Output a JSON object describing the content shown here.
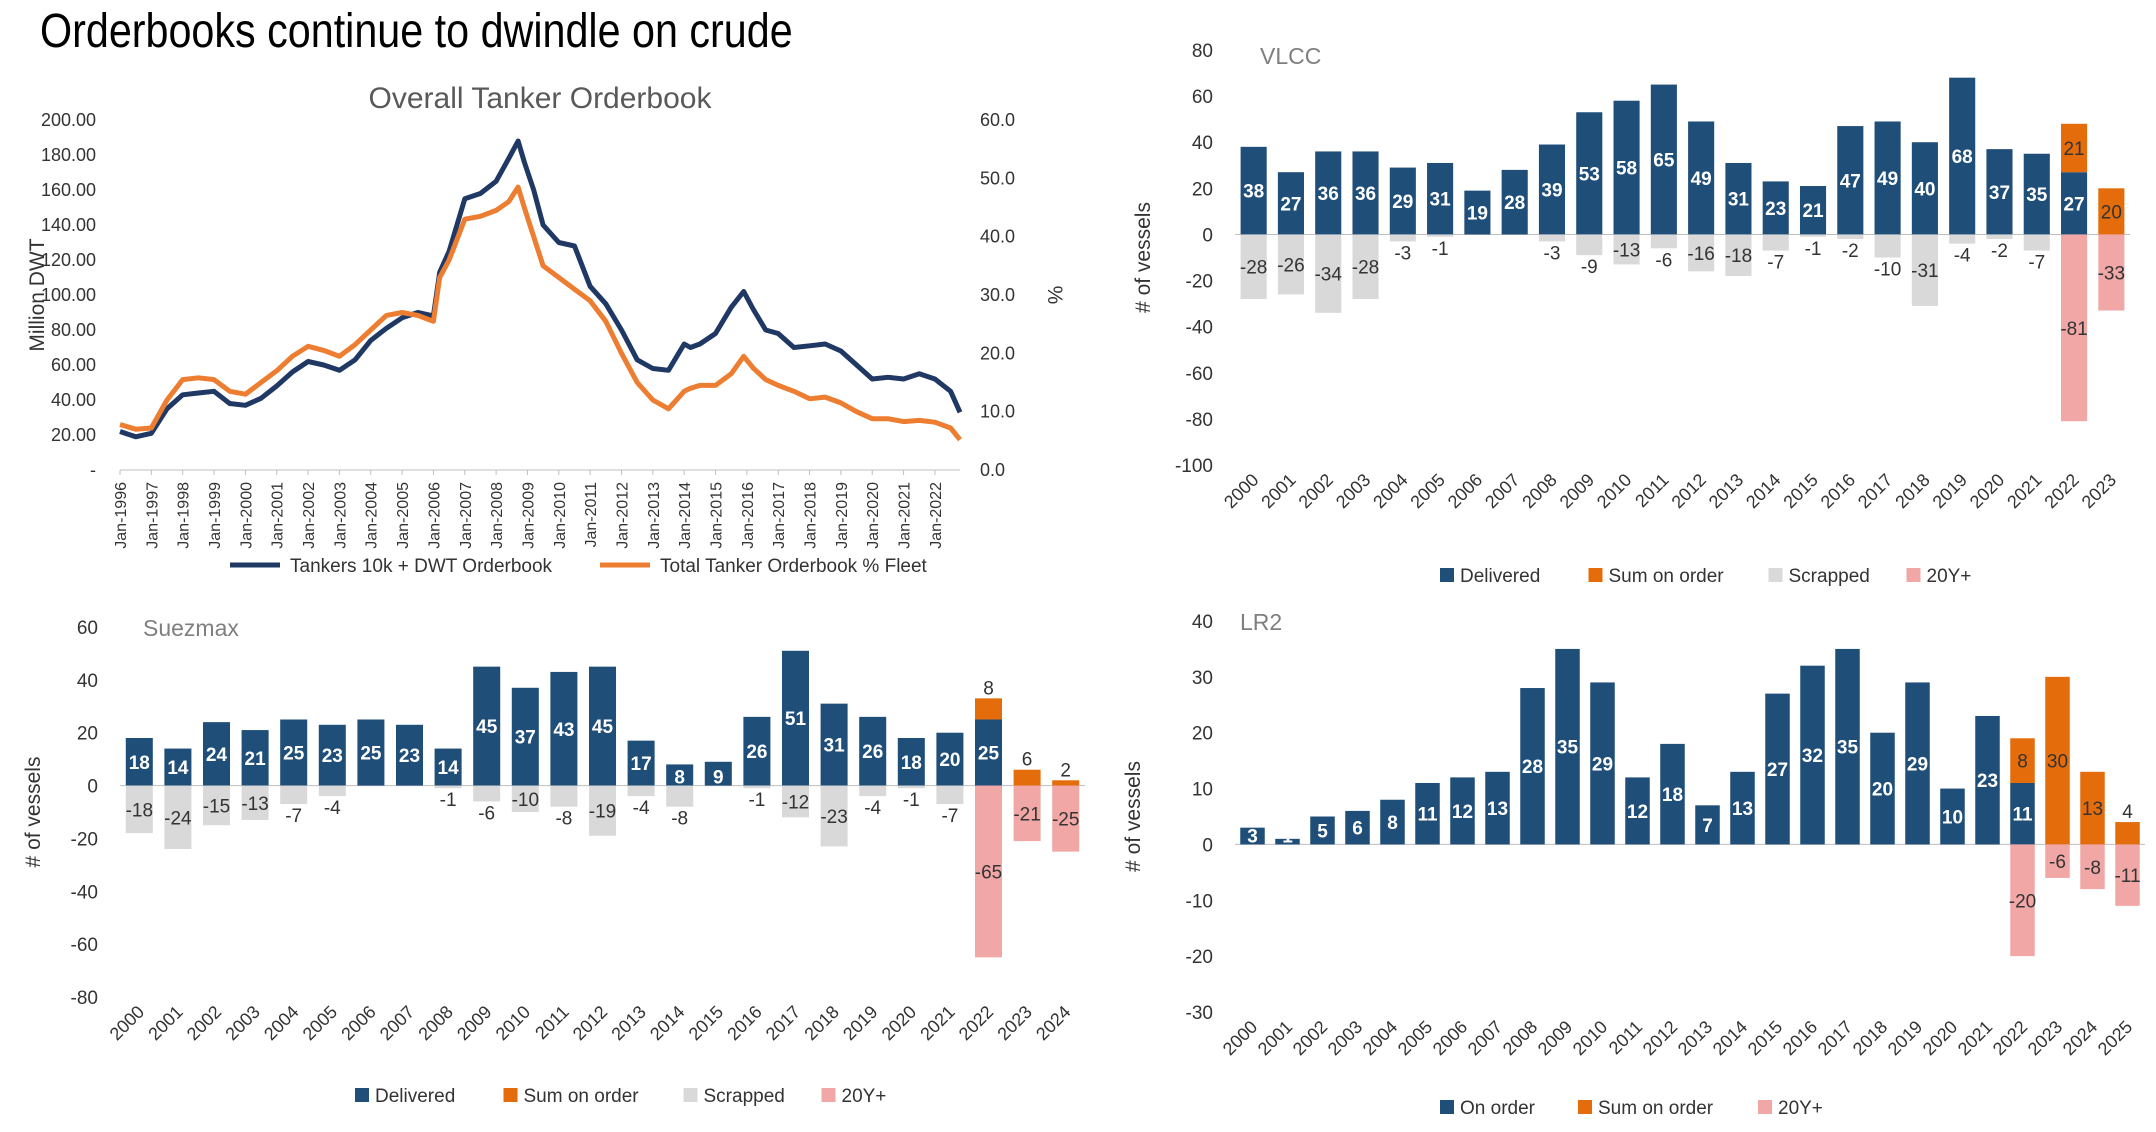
{
  "page": {
    "title": "Orderbooks continue to dwindle on crude"
  },
  "colors": {
    "navy": "#1F3864",
    "orange_line": "#ED7D31",
    "delivered": "#1F4E79",
    "on_order": "#E46C0A",
    "scrapped": "#D9D9D9",
    "old": "#F2A7A7",
    "axis_text": "#333333",
    "panel_title": "#7F7F7F"
  },
  "chart_data": [
    {
      "type": "line",
      "title": "Overall Tanker Orderbook",
      "ylabel": "Million DWT",
      "y2label": "%",
      "ylim": [
        0,
        200
      ],
      "y2lim": [
        0,
        60
      ],
      "yticks": [
        "-",
        "20.00",
        "40.00",
        "60.00",
        "80.00",
        "100.00",
        "120.00",
        "140.00",
        "160.00",
        "180.00",
        "200.00"
      ],
      "y2ticks": [
        "0.0",
        "10.0",
        "20.0",
        "30.0",
        "40.0",
        "50.0",
        "60.0"
      ],
      "x_start": 1996.0,
      "x_end": 2022.8,
      "xticks": [
        "Jan-1996",
        "Jan-1997",
        "Jan-1998",
        "Jan-1999",
        "Jan-2000",
        "Jan-2001",
        "Jan-2002",
        "Jan-2003",
        "Jan-2004",
        "Jan-2005",
        "Jan-2006",
        "Jan-2007",
        "Jan-2008",
        "Jan-2009",
        "Jan-2010",
        "Jan-2011",
        "Jan-2012",
        "Jan-2013",
        "Jan-2014",
        "Jan-2015",
        "Jan-2016",
        "Jan-2017",
        "Jan-2018",
        "Jan-2019",
        "Jan-2020",
        "Jan-2021",
        "Jan-2022"
      ],
      "legend_position": "bottom",
      "series": [
        {
          "name": "Tankers 10k + DWT Orderbook",
          "axis": "left",
          "x": [
            1996.0,
            1996.5,
            1997.0,
            1997.5,
            1998.0,
            1998.5,
            1999.0,
            1999.5,
            2000.0,
            2000.5,
            2001.0,
            2001.5,
            2002.0,
            2002.5,
            2003.0,
            2003.5,
            2004.0,
            2004.5,
            2005.0,
            2005.5,
            2006.0,
            2006.2,
            2006.5,
            2007.0,
            2007.5,
            2008.0,
            2008.4,
            2008.7,
            2008.9,
            2009.2,
            2009.5,
            2010.0,
            2010.5,
            2011.0,
            2011.5,
            2012.0,
            2012.5,
            2013.0,
            2013.5,
            2014.0,
            2014.2,
            2014.5,
            2015.0,
            2015.5,
            2015.9,
            2016.2,
            2016.6,
            2017.0,
            2017.5,
            2018.0,
            2018.5,
            2019.0,
            2019.5,
            2020.0,
            2020.5,
            2021.0,
            2021.5,
            2022.0,
            2022.5,
            2022.8
          ],
          "values": [
            22,
            19,
            21,
            35,
            43,
            44,
            45,
            38,
            37,
            41,
            48,
            56,
            62,
            60,
            57,
            63,
            74,
            81,
            87,
            90,
            88,
            113,
            125,
            155,
            158,
            165,
            178,
            188,
            176,
            160,
            140,
            130,
            128,
            105,
            95,
            80,
            63,
            58,
            57,
            72,
            70,
            72,
            78,
            93,
            102,
            92,
            80,
            78,
            70,
            71,
            72,
            68,
            60,
            52,
            53,
            52,
            55,
            52,
            45,
            33
          ]
        },
        {
          "name": "Total Tanker Orderbook % Fleet",
          "axis": "right",
          "x": [
            1996.0,
            1996.5,
            1997.0,
            1997.5,
            1998.0,
            1998.5,
            1999.0,
            1999.5,
            2000.0,
            2000.5,
            2001.0,
            2001.5,
            2002.0,
            2002.5,
            2003.0,
            2003.5,
            2004.0,
            2004.5,
            2005.0,
            2005.5,
            2006.0,
            2006.2,
            2006.5,
            2007.0,
            2007.5,
            2008.0,
            2008.4,
            2008.7,
            2008.9,
            2009.2,
            2009.5,
            2010.0,
            2010.5,
            2011.0,
            2011.5,
            2012.0,
            2012.5,
            2013.0,
            2013.5,
            2014.0,
            2014.2,
            2014.5,
            2015.0,
            2015.5,
            2015.9,
            2016.2,
            2016.6,
            2017.0,
            2017.5,
            2018.0,
            2018.5,
            2019.0,
            2019.5,
            2020.0,
            2020.5,
            2021.0,
            2021.5,
            2022.0,
            2022.5,
            2022.8
          ],
          "values": [
            7.8,
            7.0,
            7.2,
            12,
            15.5,
            15.8,
            15.5,
            13.5,
            13,
            15,
            17,
            19.5,
            21.2,
            20.5,
            19.5,
            21.5,
            24,
            26.5,
            27,
            26.5,
            25.5,
            33,
            36,
            43,
            43.5,
            44.5,
            46,
            48.5,
            45,
            40,
            35,
            33,
            31,
            29,
            25.5,
            20,
            15,
            12,
            10.5,
            13.5,
            14,
            14.5,
            14.5,
            16.5,
            19.5,
            17.5,
            15.5,
            14.5,
            13.5,
            12.2,
            12.5,
            11.5,
            10,
            8.8,
            8.8,
            8.3,
            8.5,
            8.2,
            7.2,
            5.2
          ]
        }
      ]
    },
    {
      "type": "bar",
      "title": "VLCC",
      "ylabel": "# of vessels",
      "ylim": [
        -100,
        80
      ],
      "yticks": [
        -100,
        -80,
        -60,
        -40,
        -20,
        0,
        20,
        40,
        60,
        80
      ],
      "categories": [
        "2000",
        "2001",
        "2002",
        "2003",
        "2004",
        "2005",
        "2006",
        "2007",
        "2008",
        "2009",
        "2010",
        "2011",
        "2012",
        "2013",
        "2014",
        "2015",
        "2016",
        "2017",
        "2018",
        "2019",
        "2020",
        "2021",
        "2022",
        "2023"
      ],
      "legend_position": "bottom",
      "series": [
        {
          "name": "Delivered",
          "values": [
            38,
            27,
            36,
            36,
            29,
            31,
            19,
            28,
            39,
            53,
            58,
            65,
            49,
            31,
            23,
            21,
            47,
            49,
            40,
            68,
            37,
            35,
            27,
            null
          ]
        },
        {
          "name": "Sum on order",
          "values": [
            null,
            null,
            null,
            null,
            null,
            null,
            null,
            null,
            null,
            null,
            null,
            null,
            null,
            null,
            null,
            null,
            null,
            null,
            null,
            null,
            null,
            null,
            21,
            20
          ]
        },
        {
          "name": "Scrapped",
          "values": [
            -28,
            -26,
            -34,
            -28,
            -3,
            -1,
            null,
            null,
            -3,
            -9,
            -13,
            -6,
            -16,
            -18,
            -7,
            -1,
            -2,
            -10,
            -31,
            -4,
            -2,
            -7,
            null,
            null
          ]
        },
        {
          "name": "20Y+",
          "values": [
            null,
            null,
            null,
            null,
            null,
            null,
            null,
            null,
            null,
            null,
            null,
            null,
            null,
            null,
            null,
            null,
            null,
            null,
            null,
            null,
            null,
            null,
            -81,
            -33
          ]
        }
      ]
    },
    {
      "type": "bar",
      "title": "Suezmax",
      "ylabel": "# of vessels",
      "ylim": [
        -80,
        60
      ],
      "yticks": [
        -80,
        -60,
        -40,
        -20,
        0,
        20,
        40,
        60
      ],
      "categories": [
        "2000",
        "2001",
        "2002",
        "2003",
        "2004",
        "2005",
        "2006",
        "2007",
        "2008",
        "2009",
        "2010",
        "2011",
        "2012",
        "2013",
        "2014",
        "2015",
        "2016",
        "2017",
        "2018",
        "2019",
        "2020",
        "2021",
        "2022",
        "2023",
        "2024"
      ],
      "legend_position": "bottom",
      "series": [
        {
          "name": "Delivered",
          "values": [
            18,
            14,
            24,
            21,
            25,
            23,
            25,
            23,
            14,
            45,
            37,
            43,
            45,
            17,
            8,
            9,
            26,
            51,
            31,
            26,
            18,
            20,
            25,
            null,
            null
          ]
        },
        {
          "name": "Sum on order",
          "values": [
            null,
            null,
            null,
            null,
            null,
            null,
            null,
            null,
            null,
            null,
            null,
            null,
            null,
            null,
            null,
            null,
            null,
            null,
            null,
            null,
            null,
            null,
            8,
            6,
            2
          ]
        },
        {
          "name": "Scrapped",
          "values": [
            -18,
            -24,
            -15,
            -13,
            -7,
            -4,
            null,
            null,
            -1,
            -6,
            -10,
            -8,
            -19,
            -4,
            -8,
            null,
            -1,
            -12,
            -23,
            -4,
            -1,
            -7,
            null,
            null,
            null
          ]
        },
        {
          "name": "20Y+",
          "values": [
            null,
            null,
            null,
            null,
            null,
            null,
            null,
            null,
            null,
            null,
            null,
            null,
            null,
            null,
            null,
            null,
            null,
            null,
            null,
            null,
            null,
            null,
            -65,
            -21,
            -25
          ]
        }
      ]
    },
    {
      "type": "bar",
      "title": "LR2",
      "ylabel": "# of vessels",
      "ylim": [
        -30,
        40
      ],
      "yticks": [
        -30,
        -20,
        -10,
        0,
        10,
        20,
        30,
        40
      ],
      "categories": [
        "2000",
        "2001",
        "2002",
        "2003",
        "2004",
        "2005",
        "2006",
        "2007",
        "2008",
        "2009",
        "2010",
        "2011",
        "2012",
        "2013",
        "2014",
        "2015",
        "2016",
        "2017",
        "2018",
        "2019",
        "2020",
        "2021",
        "2022",
        "2023",
        "2024",
        "2025"
      ],
      "legend_position": "bottom",
      "series": [
        {
          "name": "On order",
          "values": [
            3,
            1,
            5,
            6,
            8,
            11,
            12,
            13,
            28,
            35,
            29,
            12,
            18,
            7,
            13,
            27,
            32,
            35,
            20,
            29,
            10,
            23,
            11,
            null,
            null,
            null
          ]
        },
        {
          "name": "Sum on order",
          "values": [
            null,
            null,
            null,
            null,
            null,
            null,
            null,
            null,
            null,
            null,
            null,
            null,
            null,
            null,
            null,
            null,
            null,
            null,
            null,
            null,
            null,
            null,
            8,
            30,
            13,
            4
          ]
        },
        {
          "name": "20Y+",
          "values": [
            null,
            null,
            null,
            null,
            null,
            null,
            null,
            null,
            null,
            null,
            null,
            null,
            null,
            null,
            null,
            null,
            null,
            null,
            null,
            null,
            null,
            null,
            -20,
            -6,
            -8,
            -11
          ]
        }
      ]
    }
  ]
}
